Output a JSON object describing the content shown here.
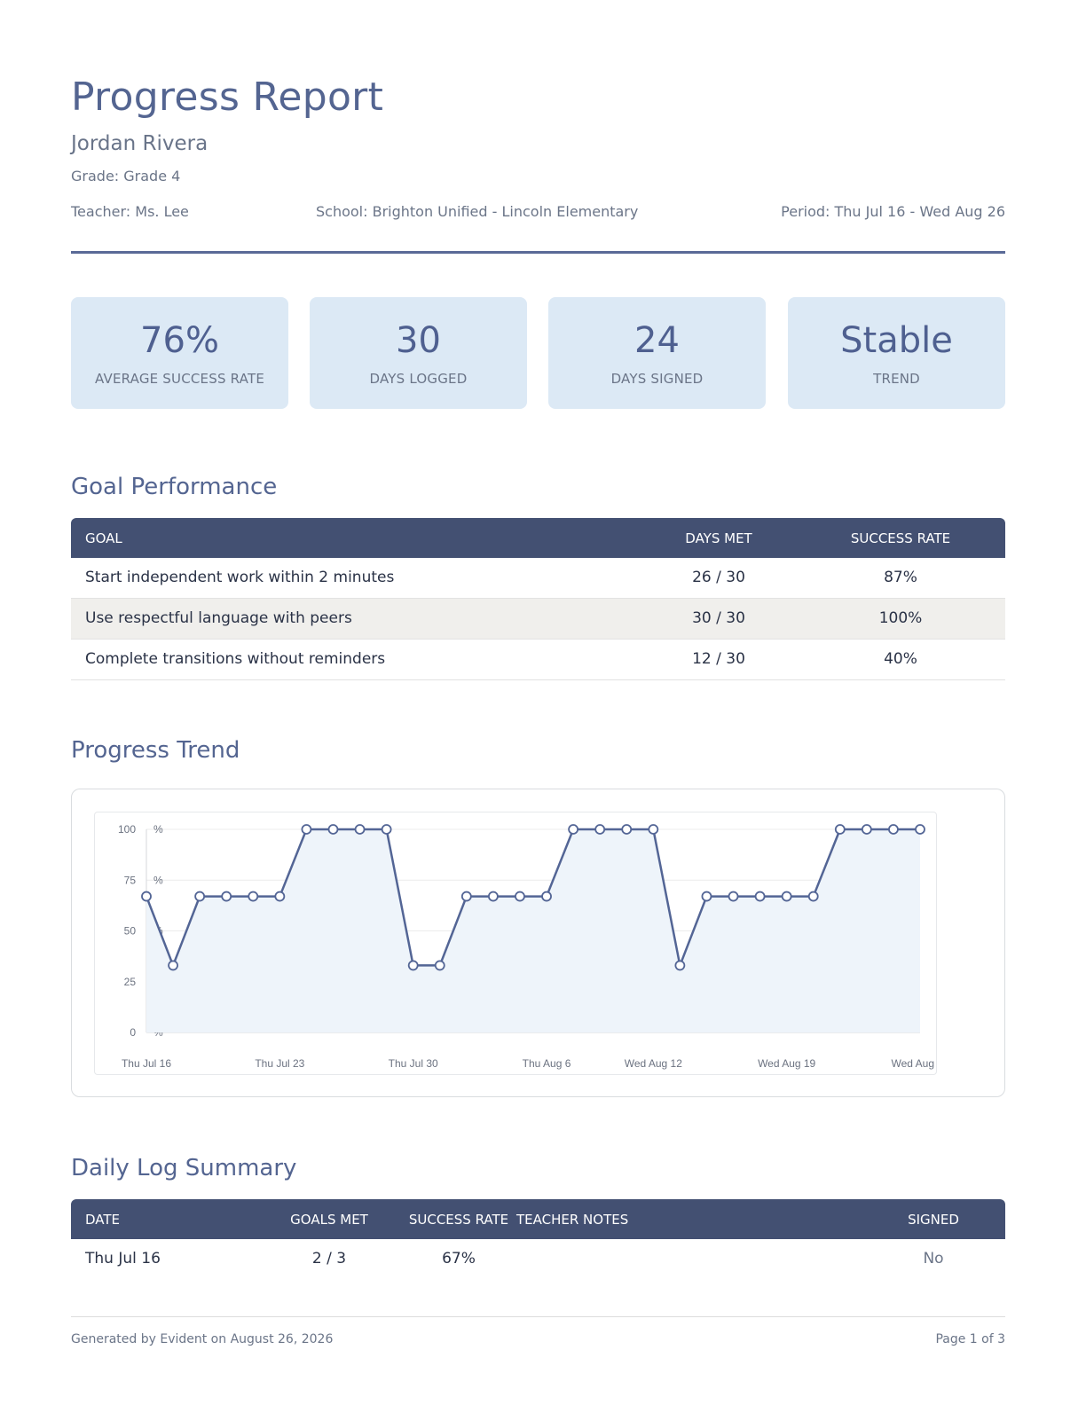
{
  "header": {
    "title": "Progress Report",
    "student_name": "Jordan Rivera",
    "grade": "Grade: Grade 4",
    "teacher": "Teacher: Ms. Lee",
    "school": "School: Brighton Unified - Lincoln Elementary",
    "period": "Period: Thu Jul 16 - Wed Aug 26"
  },
  "summary_cards": [
    {
      "value": "76%",
      "label": "AVERAGE SUCCESS RATE"
    },
    {
      "value": "30",
      "label": "DAYS LOGGED"
    },
    {
      "value": "24",
      "label": "DAYS SIGNED"
    },
    {
      "value": "Stable",
      "label": "TREND"
    }
  ],
  "goal_performance": {
    "title": "Goal Performance",
    "columns": [
      "GOAL",
      "DAYS MET",
      "SUCCESS RATE"
    ],
    "rows": [
      {
        "goal": "Start independent work within 2 minutes",
        "days_met": "26 / 30",
        "success_rate": "87%"
      },
      {
        "goal": "Use respectful language with peers",
        "days_met": "30 / 30",
        "success_rate": "100%"
      },
      {
        "goal": "Complete transitions without reminders",
        "days_met": "12 / 30",
        "success_rate": "40%"
      }
    ]
  },
  "progress_trend": {
    "title": "Progress Trend"
  },
  "chart_data": {
    "type": "area",
    "title": "",
    "xlabel": "",
    "ylabel": "",
    "ylim": [
      0,
      100
    ],
    "y_ticks": [
      "0 %",
      "25 %",
      "50 %",
      "75 %",
      "100 %"
    ],
    "x_tick_labels": [
      "Thu Jul 16",
      "Thu Jul 23",
      "Thu Jul 30",
      "Thu Aug 6",
      "Wed Aug 12",
      "Wed Aug 19",
      "Wed Aug"
    ],
    "x_tick_indices": [
      0,
      5,
      10,
      15,
      19,
      24,
      29
    ],
    "grid": true,
    "legend": "none",
    "line_color": "#536595",
    "fill_color": "#eef4fa",
    "values": [
      67,
      33,
      67,
      67,
      67,
      67,
      100,
      100,
      100,
      100,
      33,
      33,
      67,
      67,
      67,
      67,
      100,
      100,
      100,
      100,
      33,
      67,
      67,
      67,
      67,
      67,
      100,
      100,
      100,
      100
    ]
  },
  "daily_log": {
    "title": "Daily Log Summary",
    "columns": [
      "DATE",
      "GOALS MET",
      "SUCCESS RATE",
      "TEACHER NOTES",
      "SIGNED"
    ],
    "rows": [
      {
        "date": "Thu Jul 16",
        "goals_met": "2 / 3",
        "success_rate": "67%",
        "notes": "",
        "signed": "No"
      }
    ]
  },
  "footer": {
    "generated": "Generated by Evident on August 26, 2026",
    "page": "Page 1 of 3"
  }
}
